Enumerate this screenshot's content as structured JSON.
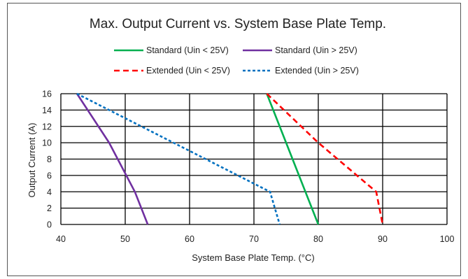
{
  "chart_data": {
    "type": "line",
    "title": "Max. Output Current vs. System Base Plate Temp.",
    "xlabel": "System Base Plate Temp. (°C)",
    "ylabel": "Output Current (A)",
    "xlim": [
      40,
      100
    ],
    "ylim": [
      0,
      16
    ],
    "xticks": [
      "40",
      "50",
      "60",
      "70",
      "80",
      "90",
      "100"
    ],
    "yticks": [
      "0",
      "2",
      "4",
      "6",
      "8",
      "10",
      "12",
      "14",
      "16"
    ],
    "grid": true,
    "legend_position": "top",
    "series": [
      {
        "name": "Standard  (Uin < 25V)",
        "color": "#00b050",
        "dash": "solid",
        "x": [
          72,
          75,
          78,
          80
        ],
        "y": [
          16,
          10,
          4,
          0
        ]
      },
      {
        "name": "Standard  (Uin > 25V)",
        "color": "#7030a0",
        "dash": "solid",
        "x": [
          42.5,
          47.5,
          51.5,
          53.5
        ],
        "y": [
          16,
          10,
          4,
          0
        ]
      },
      {
        "name": "Extended  (Uin < 25V)",
        "color": "#ff0000",
        "dash": "dash",
        "x": [
          72,
          80,
          89,
          90
        ],
        "y": [
          16,
          10,
          4,
          0
        ]
      },
      {
        "name": "Extended  (Uin > 25V)",
        "color": "#0070c0",
        "dash": "dot",
        "x": [
          42.5,
          60,
          72.5,
          74
        ],
        "y": [
          16,
          9,
          4,
          0
        ]
      }
    ]
  }
}
